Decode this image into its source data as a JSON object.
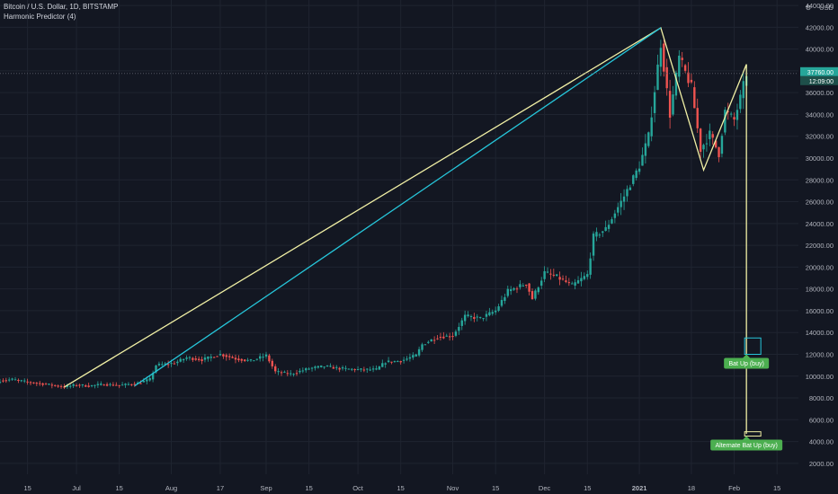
{
  "header": {
    "symbol_line": "Bitcoin / U.S. Dollar, 1D, BITSTAMP",
    "study_line": "Harmonic Predictor (4)",
    "currency": "USD"
  },
  "colors": {
    "background": "#131722",
    "grid": "#1f2430",
    "up": "#26a69a",
    "down": "#ef5350",
    "pattern_line": "#f1f0a5",
    "projection_line": "#26c6da",
    "target_label": "#4caf50",
    "price_tag": "#26a69a"
  },
  "price_tag": {
    "price": "37760.00",
    "countdown": "12:09:00"
  },
  "chart_data": {
    "type": "candlestick",
    "y_axis": {
      "unit": "USD",
      "range": [
        1000,
        44500
      ],
      "ticks": [
        2000,
        4000,
        6000,
        8000,
        10000,
        12000,
        14000,
        16000,
        18000,
        20000,
        22000,
        24000,
        26000,
        28000,
        30000,
        32000,
        34000,
        36000,
        38000,
        40000,
        42000,
        44000
      ],
      "tick_labels": [
        "2000.00",
        "4000.00",
        "6000.00",
        "8000.00",
        "10000.00",
        "12000.00",
        "14000.00",
        "16000.00",
        "18000.00",
        "20000.00",
        "22000.00",
        "24000.00",
        "26000.00",
        "28000.00",
        "30000.00",
        "32000.00",
        "34000.00",
        "36000.00",
        "38000.00",
        "40000.00",
        "42000.00",
        "44000.00"
      ]
    },
    "x_axis": {
      "range": [
        "2020-06-06",
        "2021-02-22"
      ],
      "ticks": [
        {
          "date": "2020-06-15",
          "label": "15"
        },
        {
          "date": "2020-07-01",
          "label": "Jul"
        },
        {
          "date": "2020-07-15",
          "label": "15"
        },
        {
          "date": "2020-08-01",
          "label": "Aug"
        },
        {
          "date": "2020-08-17",
          "label": "17"
        },
        {
          "date": "2020-09-01",
          "label": "Sep"
        },
        {
          "date": "2020-09-15",
          "label": "15"
        },
        {
          "date": "2020-10-01",
          "label": "Oct"
        },
        {
          "date": "2020-10-15",
          "label": "15"
        },
        {
          "date": "2020-11-01",
          "label": "Nov"
        },
        {
          "date": "2020-11-15",
          "label": "15"
        },
        {
          "date": "2020-12-01",
          "label": "Dec"
        },
        {
          "date": "2020-12-15",
          "label": "15"
        },
        {
          "date": "2021-01-01",
          "label": "2021"
        },
        {
          "date": "2021-01-18",
          "label": "18"
        },
        {
          "date": "2021-02-01",
          "label": "Feb"
        },
        {
          "date": "2021-02-15",
          "label": "15"
        }
      ]
    },
    "close_series": [
      [
        "2020-06-06",
        9600
      ],
      [
        "2020-06-10",
        9700
      ],
      [
        "2020-06-15",
        9450
      ],
      [
        "2020-06-20",
        9300
      ],
      [
        "2020-06-27",
        9000
      ],
      [
        "2020-07-01",
        9200
      ],
      [
        "2020-07-05",
        9100
      ],
      [
        "2020-07-10",
        9250
      ],
      [
        "2020-07-15",
        9150
      ],
      [
        "2020-07-21",
        9350
      ],
      [
        "2020-07-25",
        9700
      ],
      [
        "2020-07-27",
        11000
      ],
      [
        "2020-08-02",
        11200
      ],
      [
        "2020-08-06",
        11700
      ],
      [
        "2020-08-11",
        11500
      ],
      [
        "2020-08-17",
        12000
      ],
      [
        "2020-08-22",
        11600
      ],
      [
        "2020-08-27",
        11400
      ],
      [
        "2020-09-01",
        11900
      ],
      [
        "2020-09-04",
        10400
      ],
      [
        "2020-09-09",
        10200
      ],
      [
        "2020-09-15",
        10700
      ],
      [
        "2020-09-20",
        10900
      ],
      [
        "2020-09-25",
        10700
      ],
      [
        "2020-10-01",
        10600
      ],
      [
        "2020-10-07",
        10600
      ],
      [
        "2020-10-10",
        11300
      ],
      [
        "2020-10-15",
        11400
      ],
      [
        "2020-10-20",
        11900
      ],
      [
        "2020-10-22",
        12900
      ],
      [
        "2020-10-27",
        13600
      ],
      [
        "2020-11-01",
        13700
      ],
      [
        "2020-11-05",
        15500
      ],
      [
        "2020-11-10",
        15300
      ],
      [
        "2020-11-15",
        16000
      ],
      [
        "2020-11-19",
        17800
      ],
      [
        "2020-11-25",
        18500
      ],
      [
        "2020-11-27",
        17100
      ],
      [
        "2020-12-01",
        19500
      ],
      [
        "2020-12-05",
        19100
      ],
      [
        "2020-12-10",
        18300
      ],
      [
        "2020-12-15",
        19300
      ],
      [
        "2020-12-17",
        22800
      ],
      [
        "2020-12-21",
        23500
      ],
      [
        "2020-12-27",
        26500
      ],
      [
        "2021-01-01",
        29300
      ],
      [
        "2021-01-04",
        32000
      ],
      [
        "2021-01-08",
        40500
      ],
      [
        "2021-01-11",
        34000
      ],
      [
        "2021-01-14",
        39200
      ],
      [
        "2021-01-18",
        36500
      ],
      [
        "2021-01-21",
        30800
      ],
      [
        "2021-01-24",
        32200
      ],
      [
        "2021-01-27",
        30400
      ],
      [
        "2021-01-29",
        34300
      ],
      [
        "2021-02-01",
        33500
      ],
      [
        "2021-02-03",
        35500
      ],
      [
        "2021-02-05",
        37760
      ]
    ],
    "pattern_lines": [
      {
        "style": "pattern",
        "points": [
          [
            "2020-06-27",
            9000
          ],
          [
            "2021-01-08",
            41950
          ],
          [
            "2021-01-22",
            28900
          ],
          [
            "2021-02-05",
            38600
          ]
        ]
      },
      {
        "style": "pattern",
        "points": [
          [
            "2021-02-05",
            38600
          ],
          [
            "2021-02-05",
            4700
          ]
        ]
      },
      {
        "style": "projection",
        "points": [
          [
            "2020-07-20",
            9100
          ],
          [
            "2021-01-08",
            41950
          ]
        ]
      }
    ],
    "targets": [
      {
        "label": "Bat Up (buy)",
        "zone_from": 12000,
        "zone_to": 13500
      },
      {
        "label": "Alternate Bat Up (buy)",
        "zone_from": 4500,
        "zone_to": 4900
      }
    ]
  }
}
